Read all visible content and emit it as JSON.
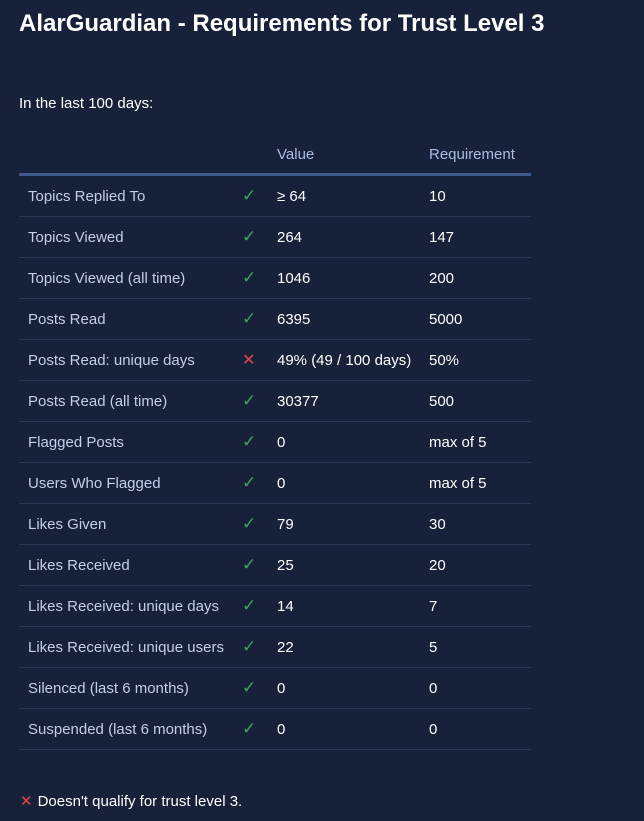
{
  "title": "AlarGuardian - Requirements for Trust Level 3",
  "intro": "In the last 100 days:",
  "headers": {
    "value": "Value",
    "requirement": "Requirement"
  },
  "rows": [
    {
      "label": "Topics Replied To",
      "ok": true,
      "value": "≥ 64",
      "requirement": "10"
    },
    {
      "label": "Topics Viewed",
      "ok": true,
      "value": "264",
      "requirement": "147"
    },
    {
      "label": "Topics Viewed (all time)",
      "ok": true,
      "value": "1046",
      "requirement": "200"
    },
    {
      "label": "Posts Read",
      "ok": true,
      "value": "6395",
      "requirement": "5000"
    },
    {
      "label": "Posts Read: unique days",
      "ok": false,
      "value": "49% (49 / 100 days)",
      "requirement": "50%"
    },
    {
      "label": "Posts Read (all time)",
      "ok": true,
      "value": "30377",
      "requirement": "500"
    },
    {
      "label": "Flagged Posts",
      "ok": true,
      "value": "0",
      "requirement": "max of 5"
    },
    {
      "label": "Users Who Flagged",
      "ok": true,
      "value": "0",
      "requirement": "max of 5"
    },
    {
      "label": "Likes Given",
      "ok": true,
      "value": "79",
      "requirement": "30"
    },
    {
      "label": "Likes Received",
      "ok": true,
      "value": "25",
      "requirement": "20"
    },
    {
      "label": "Likes Received: unique days",
      "ok": true,
      "value": "14",
      "requirement": "7"
    },
    {
      "label": "Likes Received: unique users",
      "ok": true,
      "value": "22",
      "requirement": "5"
    },
    {
      "label": "Silenced (last 6 months)",
      "ok": true,
      "value": "0",
      "requirement": "0"
    },
    {
      "label": "Suspended (last 6 months)",
      "ok": true,
      "value": "0",
      "requirement": "0"
    }
  ],
  "footer": "Doesn't qualify for trust level 3.",
  "colors": {
    "ok": "#3fa45b",
    "fail": "#e04848",
    "background": "#18213a"
  }
}
